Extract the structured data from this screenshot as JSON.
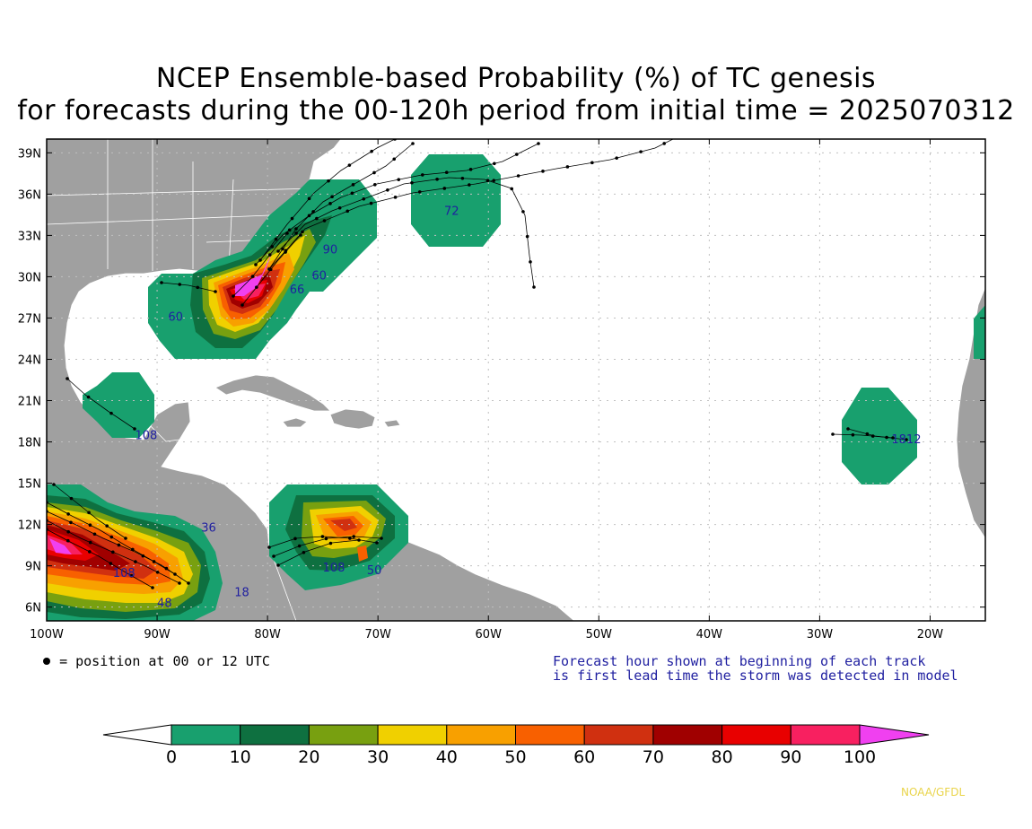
{
  "title": {
    "line1": "NCEP Ensemble-based Probability (%) of TC genesis",
    "line2": "for forecasts during the 00-120h period from initial time = 2025070312"
  },
  "map": {
    "lon_range": [
      -100,
      -15
    ],
    "lat_range": [
      5,
      40
    ],
    "lat_labels": [
      "39N",
      "36N",
      "33N",
      "30N",
      "27N",
      "24N",
      "21N",
      "18N",
      "15N",
      "12N",
      "9N",
      "6N"
    ],
    "lon_labels": [
      "100W",
      "90W",
      "80W",
      "70W",
      "60W",
      "50W",
      "40W",
      "30W",
      "20W"
    ],
    "land_color": "#a0a0a0",
    "ocean_color": "#ffffff",
    "forecast_hour_labels": [
      {
        "text": "72",
        "lon": -64,
        "lat": 34.5
      },
      {
        "text": "90",
        "lon": -75,
        "lat": 31.7
      },
      {
        "text": "60",
        "lon": -76,
        "lat": 29.8
      },
      {
        "text": "66",
        "lon": -78,
        "lat": 28.8
      },
      {
        "text": "60",
        "lon": -89,
        "lat": 26.8
      },
      {
        "text": "108",
        "lon": -92,
        "lat": 18.2
      },
      {
        "text": "1812",
        "lon": -23.5,
        "lat": 17.9
      },
      {
        "text": "36",
        "lon": -86,
        "lat": 11.5
      },
      {
        "text": "18",
        "lon": -83,
        "lat": 6.8
      },
      {
        "text": "108",
        "lon": -94,
        "lat": 8.2
      },
      {
        "text": "48",
        "lon": -90,
        "lat": 6.0
      },
      {
        "text": "108",
        "lon": -75,
        "lat": 8.6
      },
      {
        "text": "50",
        "lon": -71,
        "lat": 8.4
      }
    ]
  },
  "legend": {
    "position_note": "= position at 00 or 12 UTC",
    "forecast_note_1": "Forecast hour shown at beginning of each track",
    "forecast_note_2": "is first lead time the storm was detected in model"
  },
  "colorbar": {
    "ticks": [
      "0",
      "10",
      "20",
      "30",
      "40",
      "50",
      "60",
      "70",
      "80",
      "90",
      "100"
    ],
    "colors": [
      "#18a06e",
      "#0e7040",
      "#78a010",
      "#f0d000",
      "#f8a000",
      "#f86000",
      "#d03010",
      "#a00000",
      "#e80000",
      "#f82060",
      "#f040f0"
    ],
    "under_color": "#ffffff"
  },
  "credit": "NOAA/GFDL"
}
